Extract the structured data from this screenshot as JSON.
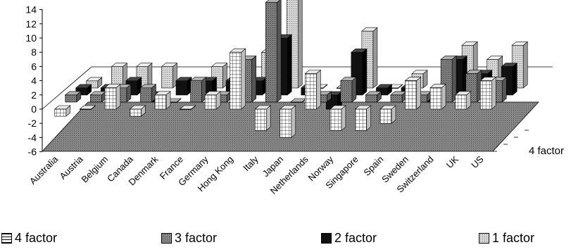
{
  "chart_data": {
    "type": "bar",
    "categories": [
      "Australia",
      "Austria",
      "Belgium",
      "Canada",
      "Denmark",
      "France",
      "Germany",
      "Hong Kong",
      "Italy",
      "Japan",
      "Netherlands",
      "Norway",
      "Singapore",
      "Spain",
      "Sweden",
      "Switzerland",
      "UK",
      "US"
    ],
    "series": [
      {
        "name": "4 factor",
        "values": [
          -1,
          0,
          3,
          -1,
          2,
          0,
          2,
          8,
          -3,
          -4,
          5,
          -3,
          -3,
          -2,
          4,
          3,
          2,
          4
        ]
      },
      {
        "name": "3 factor",
        "values": [
          1,
          1,
          2,
          2,
          0,
          3,
          1,
          6,
          14,
          0,
          1,
          3,
          1,
          1,
          1,
          6,
          4,
          3
        ]
      },
      {
        "name": "2 factor",
        "values": [
          1,
          1,
          2,
          -1,
          2,
          2,
          2,
          2,
          8,
          1,
          -2,
          6,
          1,
          1,
          -1,
          5,
          3,
          4
        ]
      },
      {
        "name": "1 factor",
        "values": [
          1,
          3,
          3,
          3,
          0,
          3,
          0,
          5,
          14,
          0,
          0,
          8,
          0,
          2,
          0,
          6,
          4,
          6
        ]
      }
    ],
    "ylim": [
      -6,
      14
    ],
    "yticks": [
      "14",
      "12",
      "10",
      "8",
      "6",
      "4",
      "2",
      "0",
      "-2",
      "-4",
      "-6"
    ],
    "depth_label": "4 factor",
    "grid": false,
    "legend_position": "bottom",
    "colors": {
      "4 factor": "#ffffff",
      "3 factor": "#9a9a9a",
      "2 factor": "#111111",
      "1 factor": "#cfcfcf"
    }
  },
  "legend": {
    "items": [
      {
        "label": "4 factor",
        "color": "#ffffff"
      },
      {
        "label": "3 factor",
        "color": "#9a9a9a"
      },
      {
        "label": "2 factor",
        "color": "#111111"
      },
      {
        "label": "1 factor",
        "color": "#cfcfcf"
      }
    ]
  }
}
